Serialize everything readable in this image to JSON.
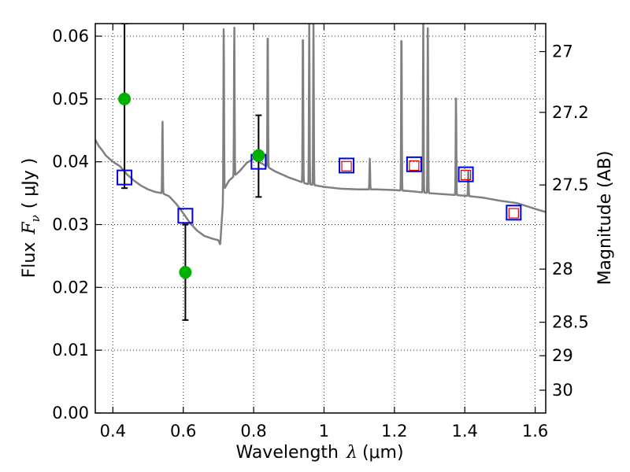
{
  "chart_data": {
    "type": "scatter",
    "xlabel": {
      "prefix": "Wavelength",
      "symbol": "λ",
      "unit": "(μm)"
    },
    "ylabel": {
      "prefix": "Flux",
      "symbol": "F",
      "subscript": "ν",
      "unit": "( μJy )"
    },
    "y2label": "Magnitude (AB)",
    "xlim": [
      0.35,
      1.63
    ],
    "ylim": [
      0.0,
      0.062
    ],
    "grid": true,
    "x_ticks": [
      0.4,
      0.6,
      0.8,
      1.0,
      1.2,
      1.4,
      1.6
    ],
    "x_tick_labels": [
      "0.4",
      "0.6",
      "0.8",
      "1",
      "1.2",
      "1.4",
      "1.6"
    ],
    "y_ticks": [
      0.0,
      0.01,
      0.02,
      0.03,
      0.04,
      0.05,
      0.06
    ],
    "y_tick_labels": [
      "0.00",
      "0.01",
      "0.02",
      "0.03",
      "0.04",
      "0.05",
      "0.06"
    ],
    "mag_ticks": [
      27,
      27.2,
      27.5,
      28,
      28.5,
      29,
      30
    ],
    "mag_tick_labels": [
      "27",
      "27.2",
      "27.5",
      "28",
      "28.5",
      "29",
      "30"
    ],
    "colors": {
      "model": "#808080",
      "observed": "#00b000",
      "model_box": "#0000dd",
      "inner_box": "#dd0000",
      "error": "#000000"
    },
    "model_spectrum": {
      "x": [
        0.35,
        0.36,
        0.37,
        0.38,
        0.39,
        0.4,
        0.42,
        0.44,
        0.46,
        0.48,
        0.5,
        0.52,
        0.54,
        0.56,
        0.58,
        0.6,
        0.62,
        0.64,
        0.66,
        0.68,
        0.7,
        0.705,
        0.715,
        0.73,
        0.76,
        0.78,
        0.8,
        0.83,
        0.86,
        0.9,
        0.95,
        1.0,
        1.05,
        1.1,
        1.15,
        1.2,
        1.25,
        1.3,
        1.35,
        1.4,
        1.45,
        1.5,
        1.55,
        1.6,
        1.63
      ],
      "y": [
        0.0435,
        0.0425,
        0.0418,
        0.041,
        0.0405,
        0.04,
        0.0393,
        0.038,
        0.037,
        0.0362,
        0.0356,
        0.0352,
        0.035,
        0.0345,
        0.0333,
        0.0318,
        0.0302,
        0.029,
        0.0282,
        0.0278,
        0.0275,
        0.0268,
        0.0355,
        0.037,
        0.0385,
        0.0398,
        0.0405,
        0.0395,
        0.0385,
        0.0375,
        0.0365,
        0.036,
        0.0357,
        0.0356,
        0.0356,
        0.0355,
        0.0353,
        0.035,
        0.0348,
        0.0346,
        0.0343,
        0.0338,
        0.0334,
        0.0325,
        0.032
      ]
    },
    "emission_lines": [
      {
        "x": 0.541,
        "peak": 0.0467
      },
      {
        "x": 0.715,
        "peak": 0.062
      },
      {
        "x": 0.745,
        "peak": 0.062
      },
      {
        "x": 0.84,
        "peak": 0.062
      },
      {
        "x": 0.94,
        "peak": 0.062
      },
      {
        "x": 0.958,
        "peak": 0.062
      },
      {
        "x": 0.97,
        "peak": 0.062
      },
      {
        "x": 1.13,
        "peak": 0.0405
      },
      {
        "x": 1.22,
        "peak": 0.062
      },
      {
        "x": 1.282,
        "peak": 0.062
      },
      {
        "x": 1.295,
        "peak": 0.062
      },
      {
        "x": 1.375,
        "peak": 0.0505
      },
      {
        "x": 1.41,
        "peak": 0.0385
      }
    ],
    "model_photometry": [
      {
        "x": 0.433,
        "y": 0.0375
      },
      {
        "x": 0.606,
        "y": 0.0314
      },
      {
        "x": 0.814,
        "y": 0.04
      },
      {
        "x": 1.064,
        "y": 0.0394
      },
      {
        "x": 1.256,
        "y": 0.0396
      },
      {
        "x": 1.403,
        "y": 0.038
      },
      {
        "x": 1.539,
        "y": 0.0319
      }
    ],
    "inner_boxes": [
      {
        "x": 1.064,
        "y": 0.0393
      },
      {
        "x": 1.256,
        "y": 0.0394
      },
      {
        "x": 1.403,
        "y": 0.0379
      },
      {
        "x": 1.539,
        "y": 0.0318
      }
    ],
    "observed": [
      {
        "x": 0.433,
        "y": 0.05,
        "err_low": 0.0358,
        "err_high": 0.062
      },
      {
        "x": 0.606,
        "y": 0.0224,
        "err_low": 0.0148,
        "err_high": 0.03
      },
      {
        "x": 0.814,
        "y": 0.041,
        "err_low": 0.0344,
        "err_high": 0.0474
      }
    ]
  }
}
